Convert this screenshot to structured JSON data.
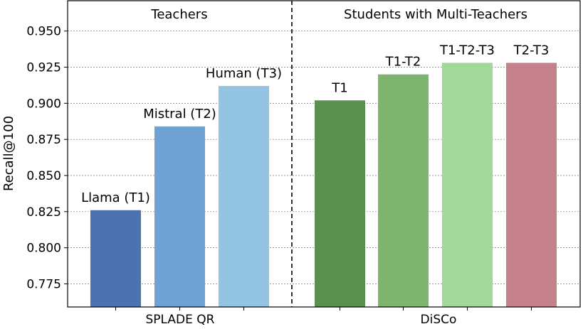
{
  "chart_data": {
    "type": "bar",
    "ylabel": "Recall@100",
    "ylim": [
      0.759,
      0.971
    ],
    "yticks": [
      "0.775",
      "0.800",
      "0.825",
      "0.850",
      "0.875",
      "0.900",
      "0.925",
      "0.950"
    ],
    "grid": "horizontal dashed",
    "groups": [
      {
        "name": "SPLADE QR",
        "section_title": "Teachers",
        "bars": [
          {
            "label": "Llama (T1)",
            "value": 0.826,
            "color": "#4c72b0"
          },
          {
            "label": "Mistral (T2)",
            "value": 0.884,
            "color": "#6fa1d2"
          },
          {
            "label": "Human (T3)",
            "value": 0.912,
            "color": "#93c4e2"
          }
        ]
      },
      {
        "name": "DiSCo",
        "section_title": "Students with Multi-Teachers",
        "bars": [
          {
            "label": "T1",
            "value": 0.902,
            "color": "#5b8f4f"
          },
          {
            "label": "T1-T2",
            "value": 0.92,
            "color": "#7db56f"
          },
          {
            "label": "T1-T2-T3",
            "value": 0.928,
            "color": "#a2d89a"
          },
          {
            "label": "T2-T3",
            "value": 0.928,
            "color": "#c4808b"
          }
        ]
      }
    ]
  }
}
